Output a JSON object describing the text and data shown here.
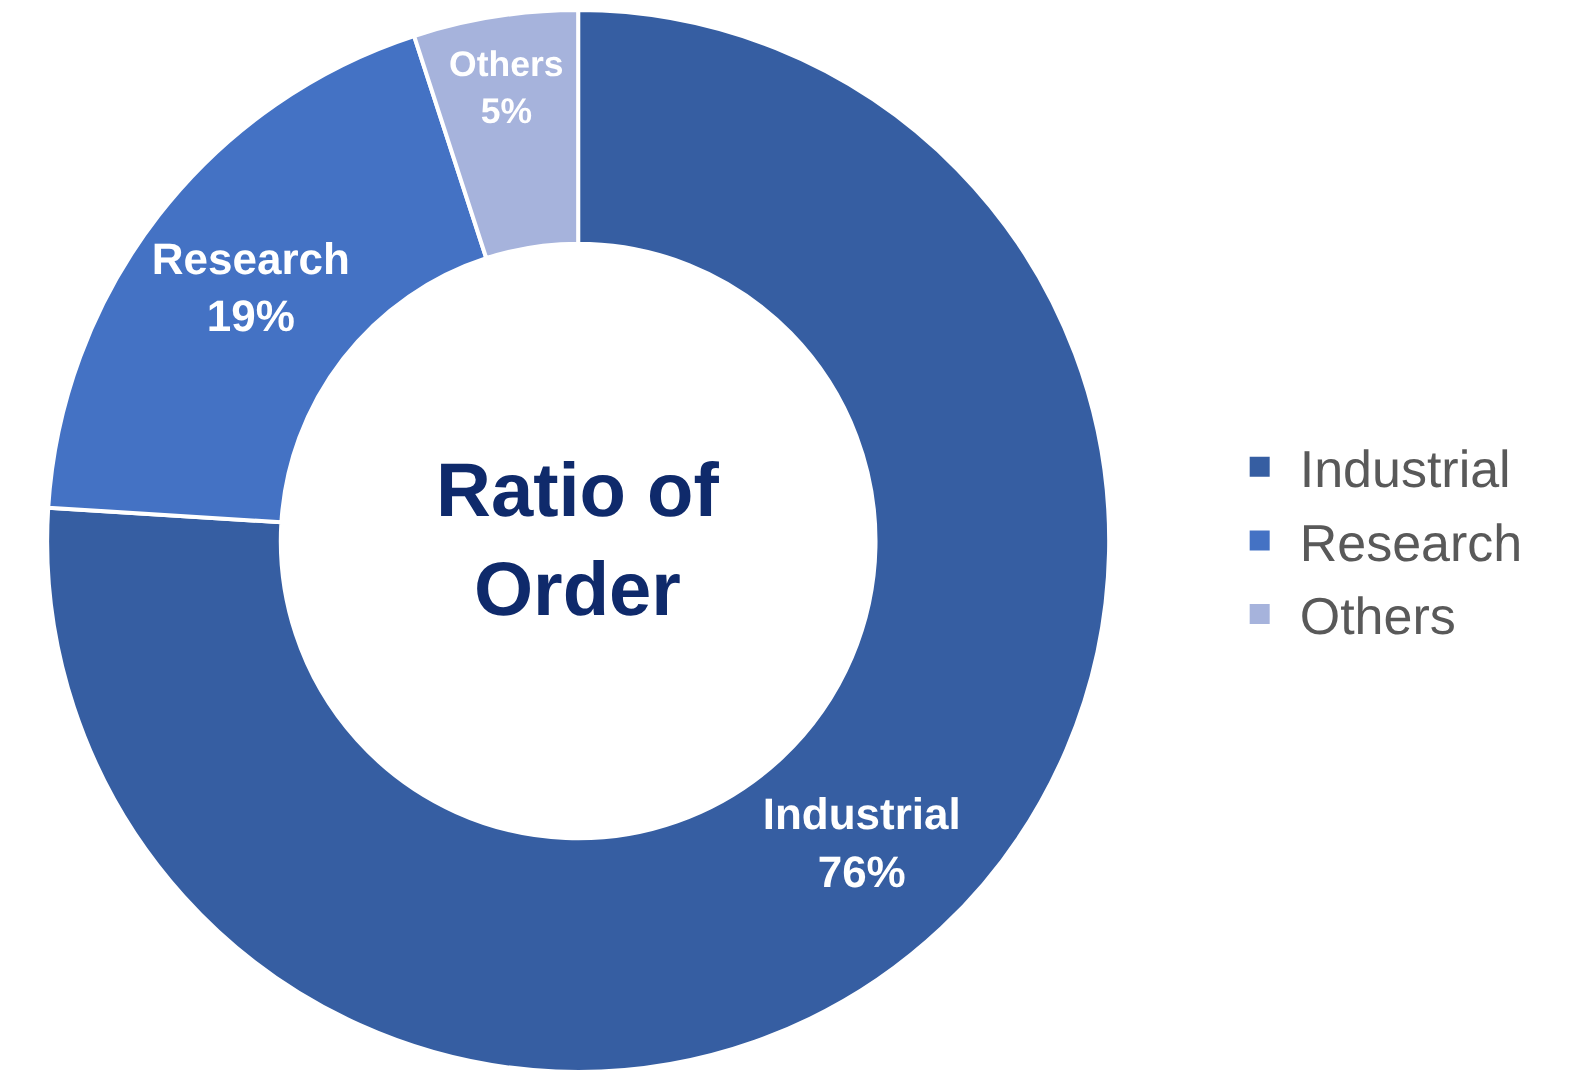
{
  "chart_data": {
    "type": "donut",
    "title": "Ratio of\nOrder",
    "categories": [
      "Industrial",
      "Research",
      "Others"
    ],
    "values": [
      76,
      19,
      5
    ],
    "colors": [
      "#365ea2",
      "#4472c4",
      "#a6b3dc"
    ],
    "value_labels": [
      "Industrial\n76%",
      "Research\n19%",
      "Others\n5%"
    ],
    "legend": "right"
  }
}
